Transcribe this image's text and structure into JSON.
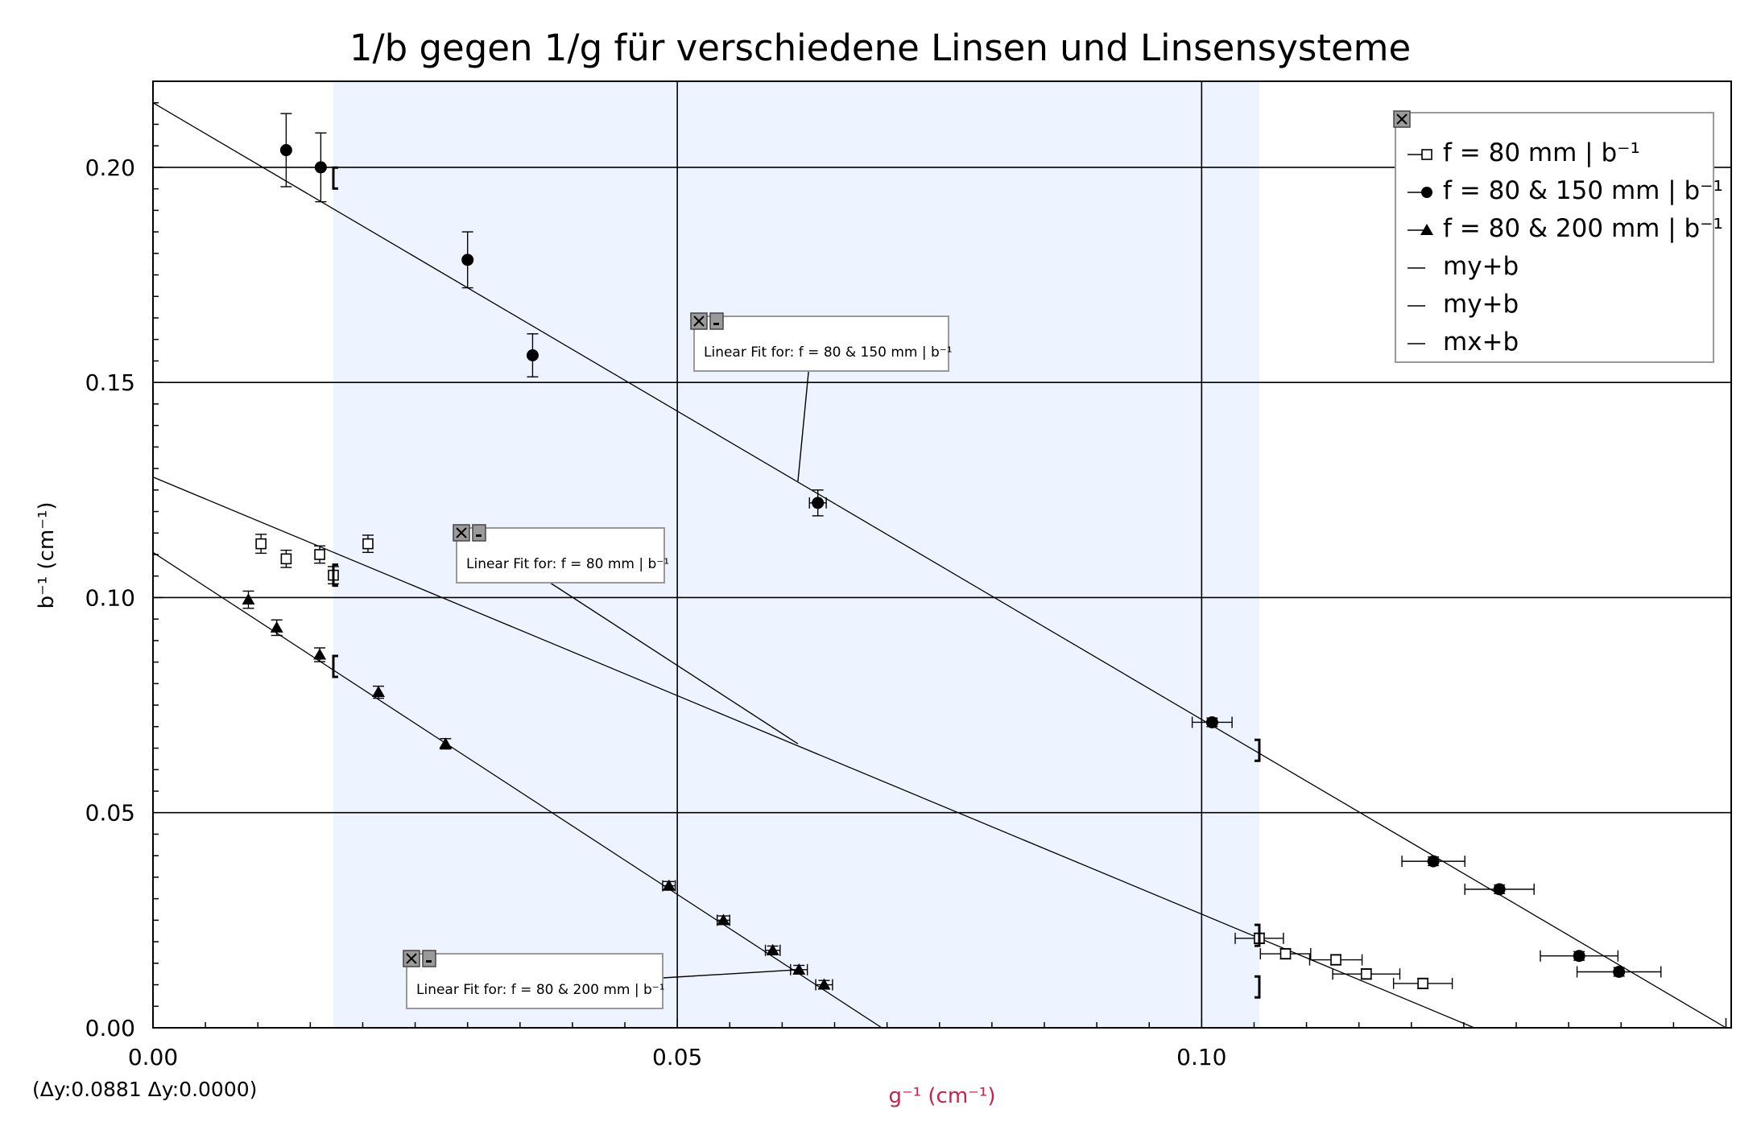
{
  "chart_data": {
    "type": "scatter",
    "title": "1/b gegen 1/g für verschiedene Linsen und Linsensysteme",
    "xlabel": "g⁻¹ (cm⁻¹)",
    "ylabel": "b⁻¹ (cm⁻¹)",
    "xlim": [
      0,
      0.1505
    ],
    "ylim": [
      0,
      0.22
    ],
    "x_ticks": [
      "0.00",
      "0.05",
      "0.10"
    ],
    "y_ticks": [
      "0.00",
      "0.05",
      "0.10",
      "0.15",
      "0.20"
    ],
    "x_tick_values": [
      0,
      0.05,
      0.1
    ],
    "y_tick_values": [
      0,
      0.05,
      0.1,
      0.15,
      0.2
    ],
    "grid": true,
    "legend_position": "top-right",
    "xlabel_color": "#cc1f4a",
    "selection_range": [
      0.0172,
      0.1055
    ],
    "selection_color": "#eef4ff",
    "series": [
      {
        "name": "f = 80 mm | b⁻¹",
        "marker": "square-open",
        "x": [
          0.0103,
          0.0127,
          0.0159,
          0.0172,
          0.0205,
          0.1055,
          0.108,
          0.1128,
          0.1157,
          0.1211
        ],
        "y": [
          0.1125,
          0.109,
          0.11,
          0.1052,
          0.1125,
          0.0208,
          0.0172,
          0.0158,
          0.0125,
          0.0103
        ],
        "xerr": [
          0,
          0,
          0,
          0,
          0,
          0.0023,
          0.0024,
          0.0025,
          0.0032,
          0.0028
        ],
        "yerr": [
          0.0022,
          0.002,
          0.002,
          0.002,
          0.002,
          0.0012,
          0.0012,
          0.0012,
          0.0012,
          0.0012
        ]
      },
      {
        "name": "f = 80 & 150 mm | b⁻¹",
        "marker": "circle",
        "x": [
          0.0127,
          0.016,
          0.03,
          0.0362,
          0.0634,
          0.101,
          0.1221,
          0.1284,
          0.136,
          0.1398
        ],
        "y": [
          0.204,
          0.2,
          0.1785,
          0.1563,
          0.122,
          0.071,
          0.0387,
          0.0322,
          0.0167,
          0.013
        ],
        "xerr": [
          0,
          0,
          0,
          0,
          0.0008,
          0.0019,
          0.003,
          0.0033,
          0.0037,
          0.004
        ],
        "yerr": [
          0.0085,
          0.008,
          0.0065,
          0.005,
          0.003,
          0.001,
          0.001,
          0.001,
          0.001,
          0.001
        ]
      },
      {
        "name": "f = 80 & 200 mm | b⁻¹",
        "marker": "triangle",
        "x": [
          0.0091,
          0.0118,
          0.0159,
          0.0215,
          0.0279,
          0.0492,
          0.0544,
          0.0591,
          0.0616,
          0.064
        ],
        "y": [
          0.0995,
          0.093,
          0.0867,
          0.078,
          0.066,
          0.033,
          0.025,
          0.018,
          0.0135,
          0.01
        ],
        "xerr": [
          0,
          0,
          0,
          0,
          0,
          0.0006,
          0.0006,
          0.0007,
          0.0008,
          0.0008
        ],
        "yerr": [
          0.002,
          0.0018,
          0.0016,
          0.0014,
          0.0012,
          0.001,
          0.001,
          0.001,
          0.001,
          0.001
        ]
      }
    ],
    "fits": [
      {
        "name": "my+b",
        "x": [
          0,
          0.126
        ],
        "y": [
          0.128,
          0.0
        ]
      },
      {
        "name": "my+b",
        "x": [
          0,
          0.15
        ],
        "y": [
          0.215,
          0.0
        ]
      },
      {
        "name": "mx+b",
        "x": [
          0,
          0.0695
        ],
        "y": [
          0.1105,
          0.0
        ]
      }
    ],
    "annotations": [
      {
        "text": "Linear Fit for: f = 80 & 150 mm | b⁻¹",
        "target_x": 0.0615,
        "target_y": 0.127
      },
      {
        "text": "Linear Fit for: f = 80 mm | b⁻¹",
        "target_x": 0.0615,
        "target_y": 0.066
      },
      {
        "text": "Linear Fit for: f = 80 & 200 mm | b⁻¹",
        "target_x": 0.0616,
        "target_y": 0.0135
      }
    ],
    "delta_readout": "(Δy:0.0881 Δy:0.0000)"
  }
}
